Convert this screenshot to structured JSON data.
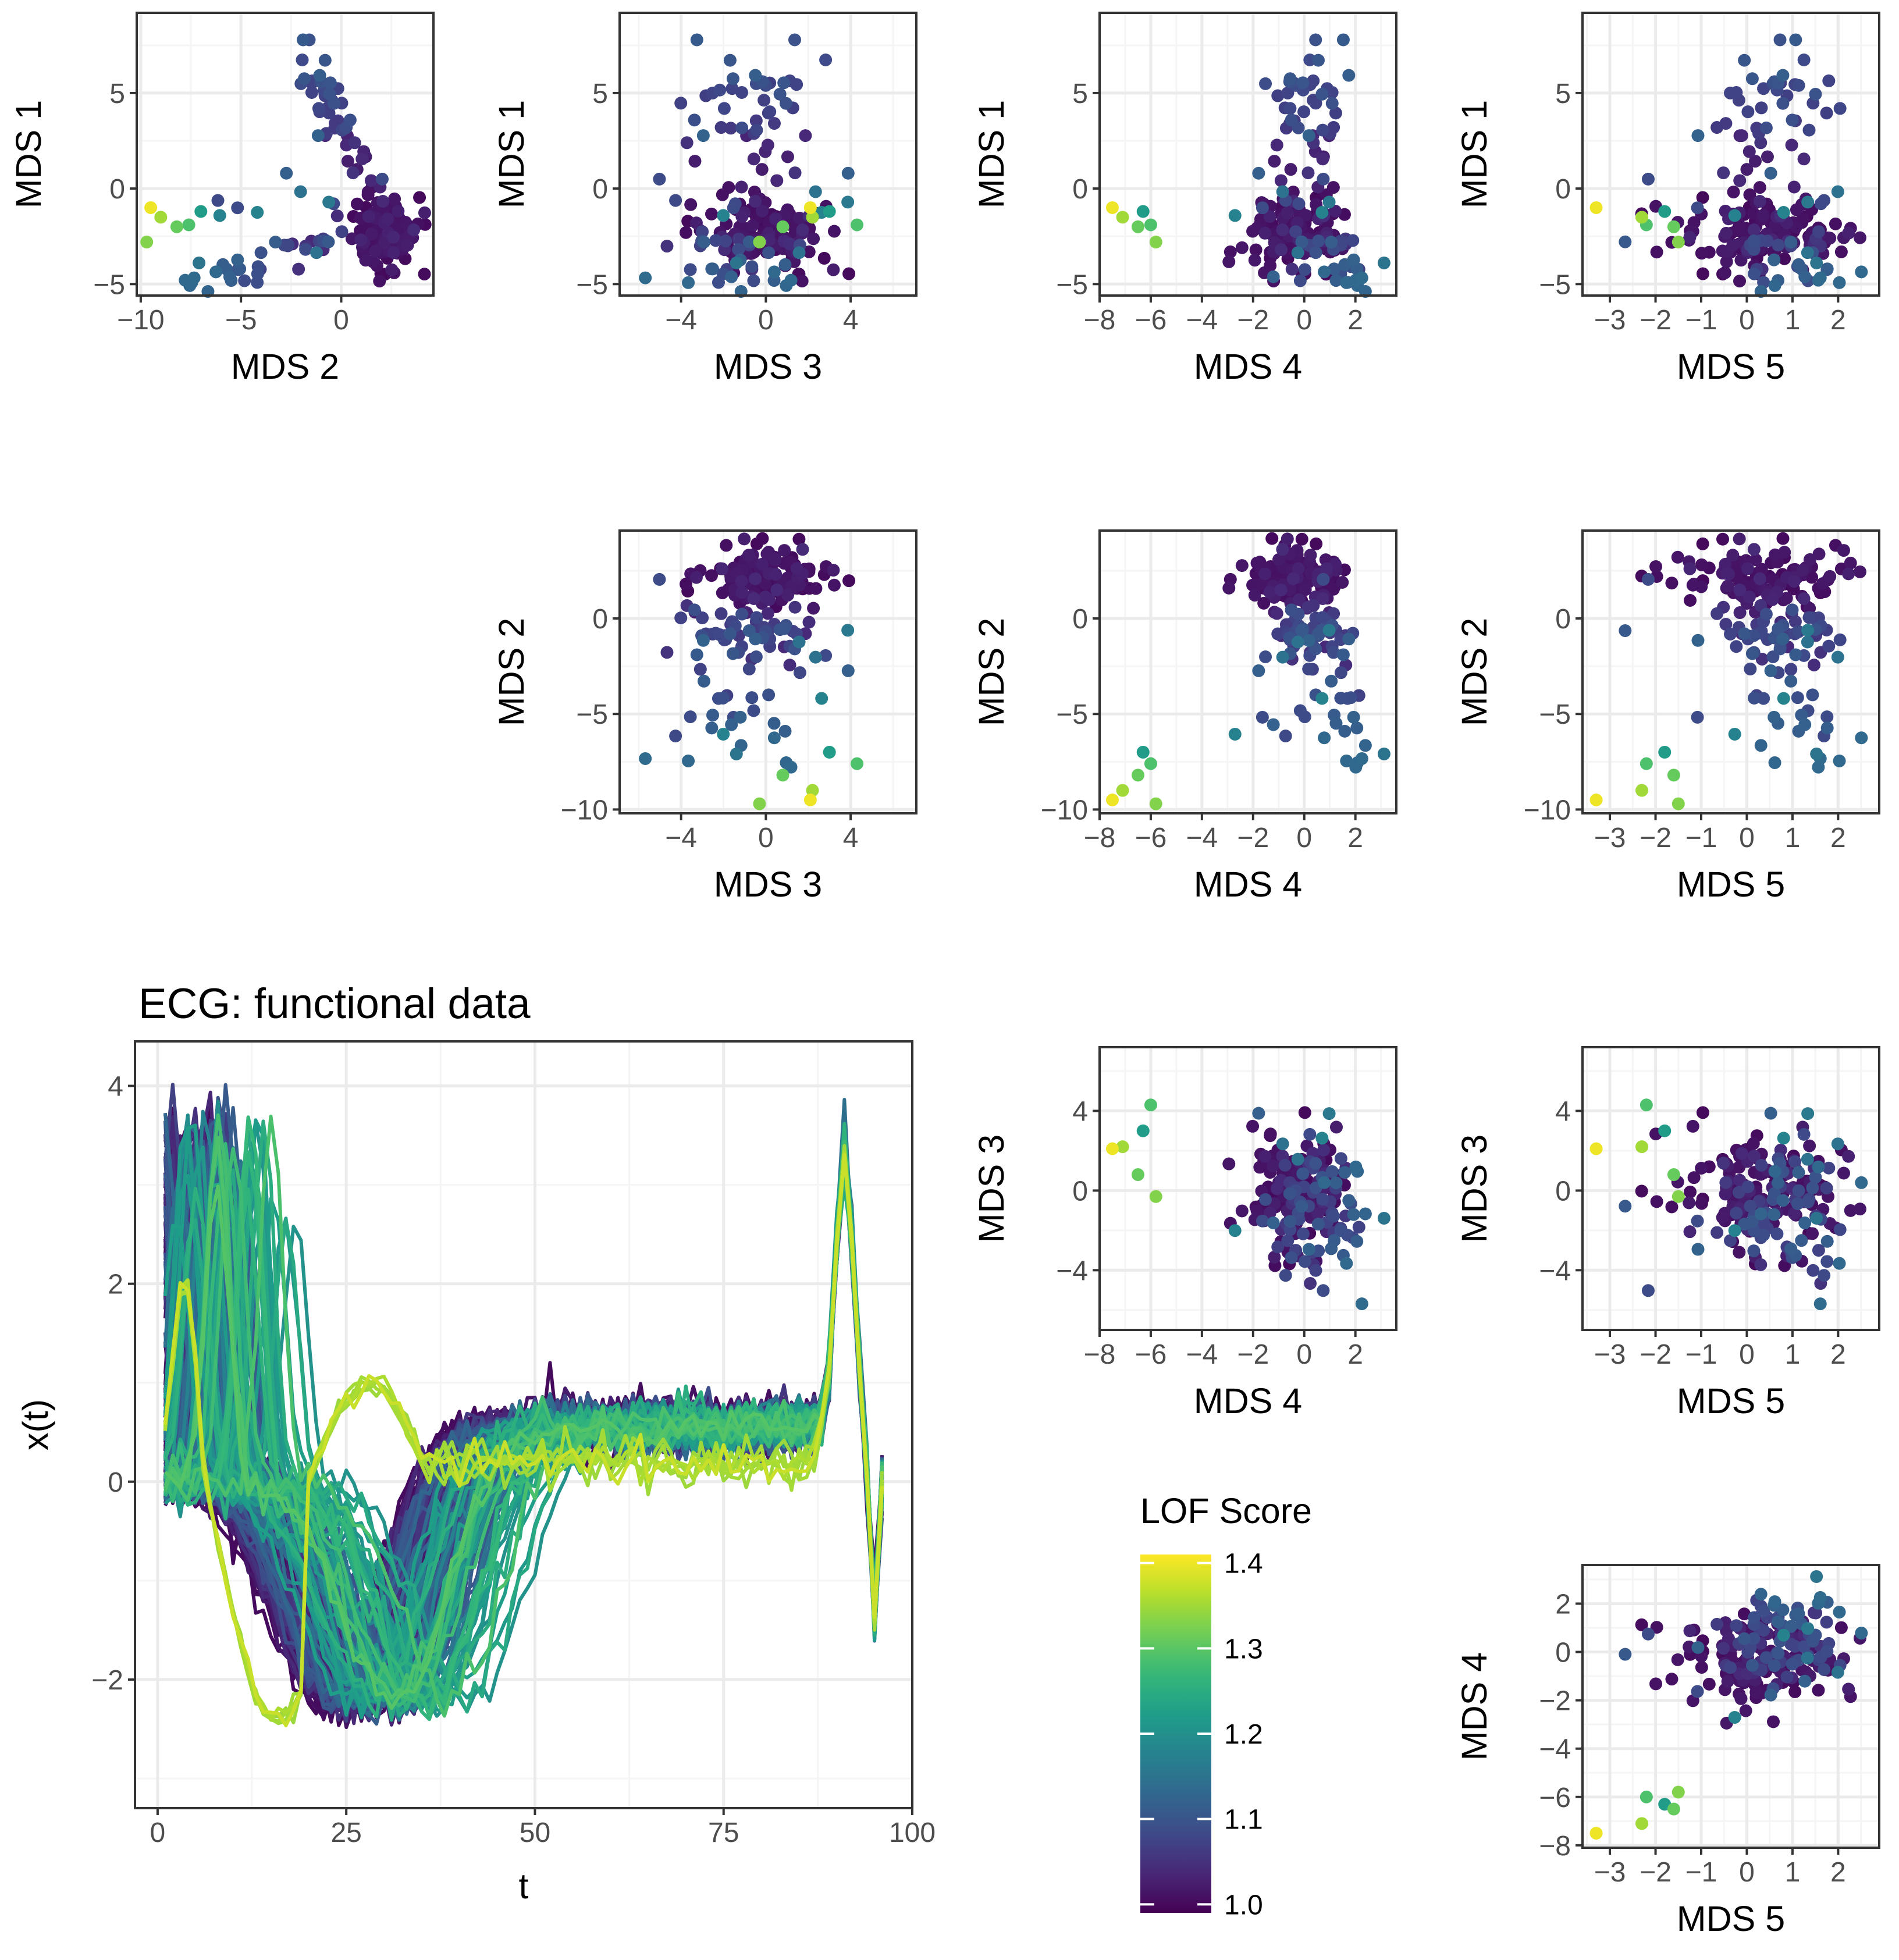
{
  "colors": {
    "viridis": [
      "#440154",
      "#482878",
      "#3e4a89",
      "#31688e",
      "#26828e",
      "#1f9e89",
      "#35b779",
      "#6ece58",
      "#b5de2b",
      "#fde725"
    ],
    "grid_major": "#ebebeb",
    "grid_minor": "#f5f5f5",
    "panel_border": "#333333"
  },
  "chart_data": [
    {
      "id": "p_2_1",
      "type": "scatter",
      "xlabel": "MDS  2",
      "ylabel": "MDS  1",
      "xlim": [
        -10.2,
        4.6
      ],
      "ylim": [
        -5.6,
        9.2
      ],
      "xticks": [
        -10,
        -5,
        0
      ],
      "yticks": [
        -5,
        0,
        5
      ],
      "x_dim": 2,
      "y_dim": 1
    },
    {
      "id": "p_3_1",
      "type": "scatter",
      "xlabel": "MDS  3",
      "ylabel": "MDS  1",
      "xlim": [
        -6.9,
        7.1
      ],
      "ylim": [
        -5.6,
        9.2
      ],
      "xticks": [
        -4,
        0,
        4
      ],
      "yticks": [
        -5,
        0,
        5
      ],
      "x_dim": 3,
      "y_dim": 1
    },
    {
      "id": "p_4_1",
      "type": "scatter",
      "xlabel": "MDS  4",
      "ylabel": "MDS  1",
      "xlim": [
        -8,
        3.6
      ],
      "ylim": [
        -5.6,
        9.2
      ],
      "xticks": [
        -8,
        -6,
        -4,
        -2,
        0,
        2
      ],
      "yticks": [
        -5,
        0,
        5
      ],
      "x_dim": 4,
      "y_dim": 1
    },
    {
      "id": "p_5_1",
      "type": "scatter",
      "xlabel": "MDS  5",
      "ylabel": "MDS  1",
      "xlim": [
        -3.6,
        2.9
      ],
      "ylim": [
        -5.6,
        9.2
      ],
      "xticks": [
        -3,
        -2,
        -1,
        0,
        1,
        2
      ],
      "yticks": [
        -5,
        0,
        5
      ],
      "x_dim": 5,
      "y_dim": 1
    },
    {
      "id": "p_3_2",
      "type": "scatter",
      "xlabel": "MDS  3",
      "ylabel": "MDS  2",
      "xlim": [
        -6.9,
        7.1
      ],
      "ylim": [
        -10.2,
        4.6
      ],
      "xticks": [
        -4,
        0,
        4
      ],
      "yticks": [
        -10,
        -5,
        0
      ],
      "x_dim": 3,
      "y_dim": 2
    },
    {
      "id": "p_4_2",
      "type": "scatter",
      "xlabel": "MDS  4",
      "ylabel": "MDS  2",
      "xlim": [
        -8,
        3.6
      ],
      "ylim": [
        -10.2,
        4.6
      ],
      "xticks": [
        -8,
        -6,
        -4,
        -2,
        0,
        2
      ],
      "yticks": [
        -10,
        -5,
        0
      ],
      "x_dim": 4,
      "y_dim": 2
    },
    {
      "id": "p_5_2",
      "type": "scatter",
      "xlabel": "MDS  5",
      "ylabel": "MDS  2",
      "xlim": [
        -3.6,
        2.9
      ],
      "ylim": [
        -10.2,
        4.6
      ],
      "xticks": [
        -3,
        -2,
        -1,
        0,
        1,
        2
      ],
      "yticks": [
        -10,
        -5,
        0
      ],
      "x_dim": 5,
      "y_dim": 2
    },
    {
      "id": "p_4_3",
      "type": "scatter",
      "xlabel": "MDS  4",
      "ylabel": "MDS  3",
      "xlim": [
        -8,
        3.6
      ],
      "ylim": [
        -7,
        7.2
      ],
      "xticks": [
        -8,
        -6,
        -4,
        -2,
        0,
        2
      ],
      "yticks": [
        -4,
        0,
        4
      ],
      "x_dim": 4,
      "y_dim": 3
    },
    {
      "id": "p_5_3",
      "type": "scatter",
      "xlabel": "MDS  5",
      "ylabel": "MDS  3",
      "xlim": [
        -3.6,
        2.9
      ],
      "ylim": [
        -7,
        7.2
      ],
      "xticks": [
        -3,
        -2,
        -1,
        0,
        1,
        2
      ],
      "yticks": [
        -4,
        0,
        4
      ],
      "x_dim": 5,
      "y_dim": 3
    },
    {
      "id": "p_5_4",
      "type": "scatter",
      "xlabel": "MDS  5",
      "ylabel": "MDS  4",
      "xlim": [
        -3.6,
        2.9
      ],
      "ylim": [
        -8.1,
        3.6
      ],
      "xticks": [
        -3,
        -2,
        -1,
        0,
        1,
        2
      ],
      "yticks": [
        -8,
        -6,
        -4,
        -2,
        0,
        2
      ],
      "x_dim": 5,
      "y_dim": 4
    },
    {
      "id": "ecg",
      "type": "line",
      "title": "ECG: functional data",
      "xlabel": "t",
      "ylabel": "x(t)",
      "xlim": [
        -3,
        100
      ],
      "ylim": [
        -3.3,
        4.45
      ],
      "xticks": [
        0,
        25,
        50,
        75,
        100
      ],
      "yticks": [
        -2,
        0,
        2,
        4
      ],
      "t_range": [
        1,
        96
      ],
      "summary": "Approximately 200 ECG curves over t = 1..96, colored by LOF score; typical curve rises to ~3-4 near t=3, falls to about -2.3 around t=28-30, recovers to ~0.5 by t=40-50, stays near 0.3-0.8 until t=88, spikes to ~3 at t=91 and drops sharply near t=95."
    },
    {
      "id": "legend",
      "type": "colorbar",
      "title": "LOF Score",
      "ticks": [
        1.0,
        1.1,
        1.2,
        1.3,
        1.4
      ],
      "tick_labels": [
        "1.0",
        "1.1",
        "1.2",
        "1.3",
        "1.4"
      ],
      "range": [
        0.99,
        1.41
      ]
    }
  ]
}
